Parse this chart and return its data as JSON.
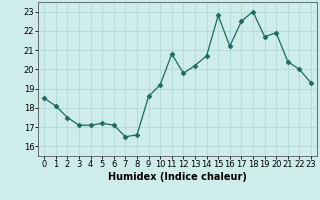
{
  "x": [
    0,
    1,
    2,
    3,
    4,
    5,
    6,
    7,
    8,
    9,
    10,
    11,
    12,
    13,
    14,
    15,
    16,
    17,
    18,
    19,
    20,
    21,
    22,
    23
  ],
  "y": [
    18.5,
    18.1,
    17.5,
    17.1,
    17.1,
    17.2,
    17.1,
    16.5,
    16.6,
    18.6,
    19.2,
    20.8,
    19.8,
    20.2,
    20.7,
    22.8,
    21.2,
    22.5,
    23.0,
    21.7,
    21.9,
    20.4,
    20.0,
    19.3
  ],
  "line_color": "#1a6b5e",
  "marker": "D",
  "marker_size": 2.5,
  "bg_color": "#ceecea",
  "grid_color": "#b0d8d5",
  "xlabel": "Humidex (Indice chaleur)",
  "xlim": [
    -0.5,
    23.5
  ],
  "ylim": [
    15.5,
    23.5
  ],
  "yticks": [
    16,
    17,
    18,
    19,
    20,
    21,
    22,
    23
  ],
  "xticks": [
    0,
    1,
    2,
    3,
    4,
    5,
    6,
    7,
    8,
    9,
    10,
    11,
    12,
    13,
    14,
    15,
    16,
    17,
    18,
    19,
    20,
    21,
    22,
    23
  ],
  "tick_fontsize": 6,
  "xlabel_fontsize": 7
}
